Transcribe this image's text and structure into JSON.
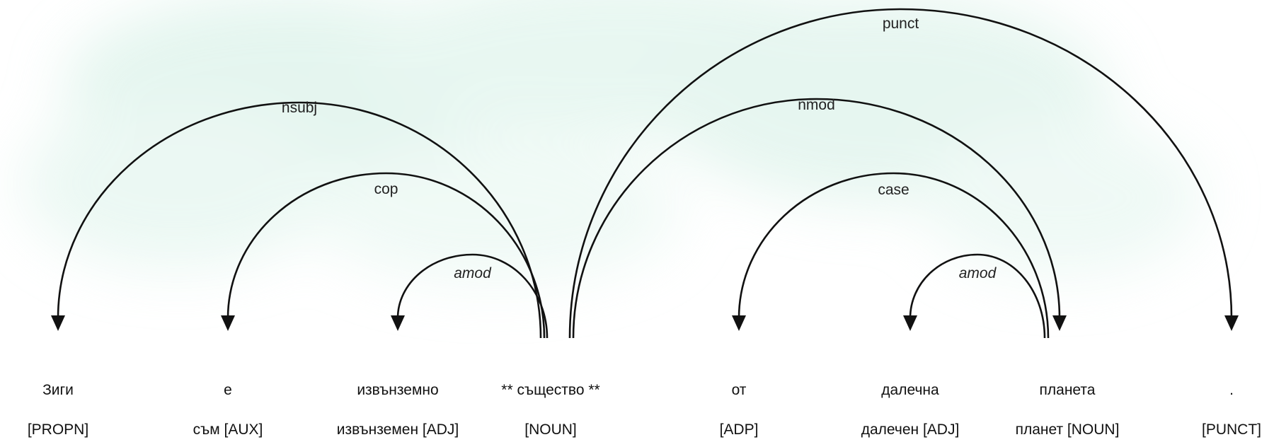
{
  "tokens": [
    {
      "text": "Зиги",
      "tag": "[PROPN]"
    },
    {
      "text": "е",
      "tag": "съм [AUX]"
    },
    {
      "text": "извънземно",
      "tag": "извънземен [ADJ]"
    },
    {
      "text": "** същество **",
      "tag": "[NOUN]"
    },
    {
      "text": "от",
      "tag": "[ADP]"
    },
    {
      "text": "далечна",
      "tag": "далечен [ADJ]"
    },
    {
      "text": "планета",
      "tag": "планет [NOUN]"
    },
    {
      "text": ".",
      "tag": "[PUNCT]"
    }
  ],
  "relations": [
    {
      "label": "nsubj",
      "head": 3,
      "dep": 0,
      "italic": false
    },
    {
      "label": "cop",
      "head": 3,
      "dep": 1,
      "italic": false
    },
    {
      "label": "amod",
      "head": 3,
      "dep": 2,
      "italic": true
    },
    {
      "label": "punct",
      "head": 3,
      "dep": 7,
      "italic": false
    },
    {
      "label": "nmod",
      "head": 3,
      "dep": 6,
      "italic": false
    },
    {
      "label": "case",
      "head": 6,
      "dep": 4,
      "italic": false
    },
    {
      "label": "amod",
      "head": 6,
      "dep": 5,
      "italic": true
    }
  ],
  "colors": {
    "background_tint": "#cfeee2",
    "ink": "#111111"
  }
}
